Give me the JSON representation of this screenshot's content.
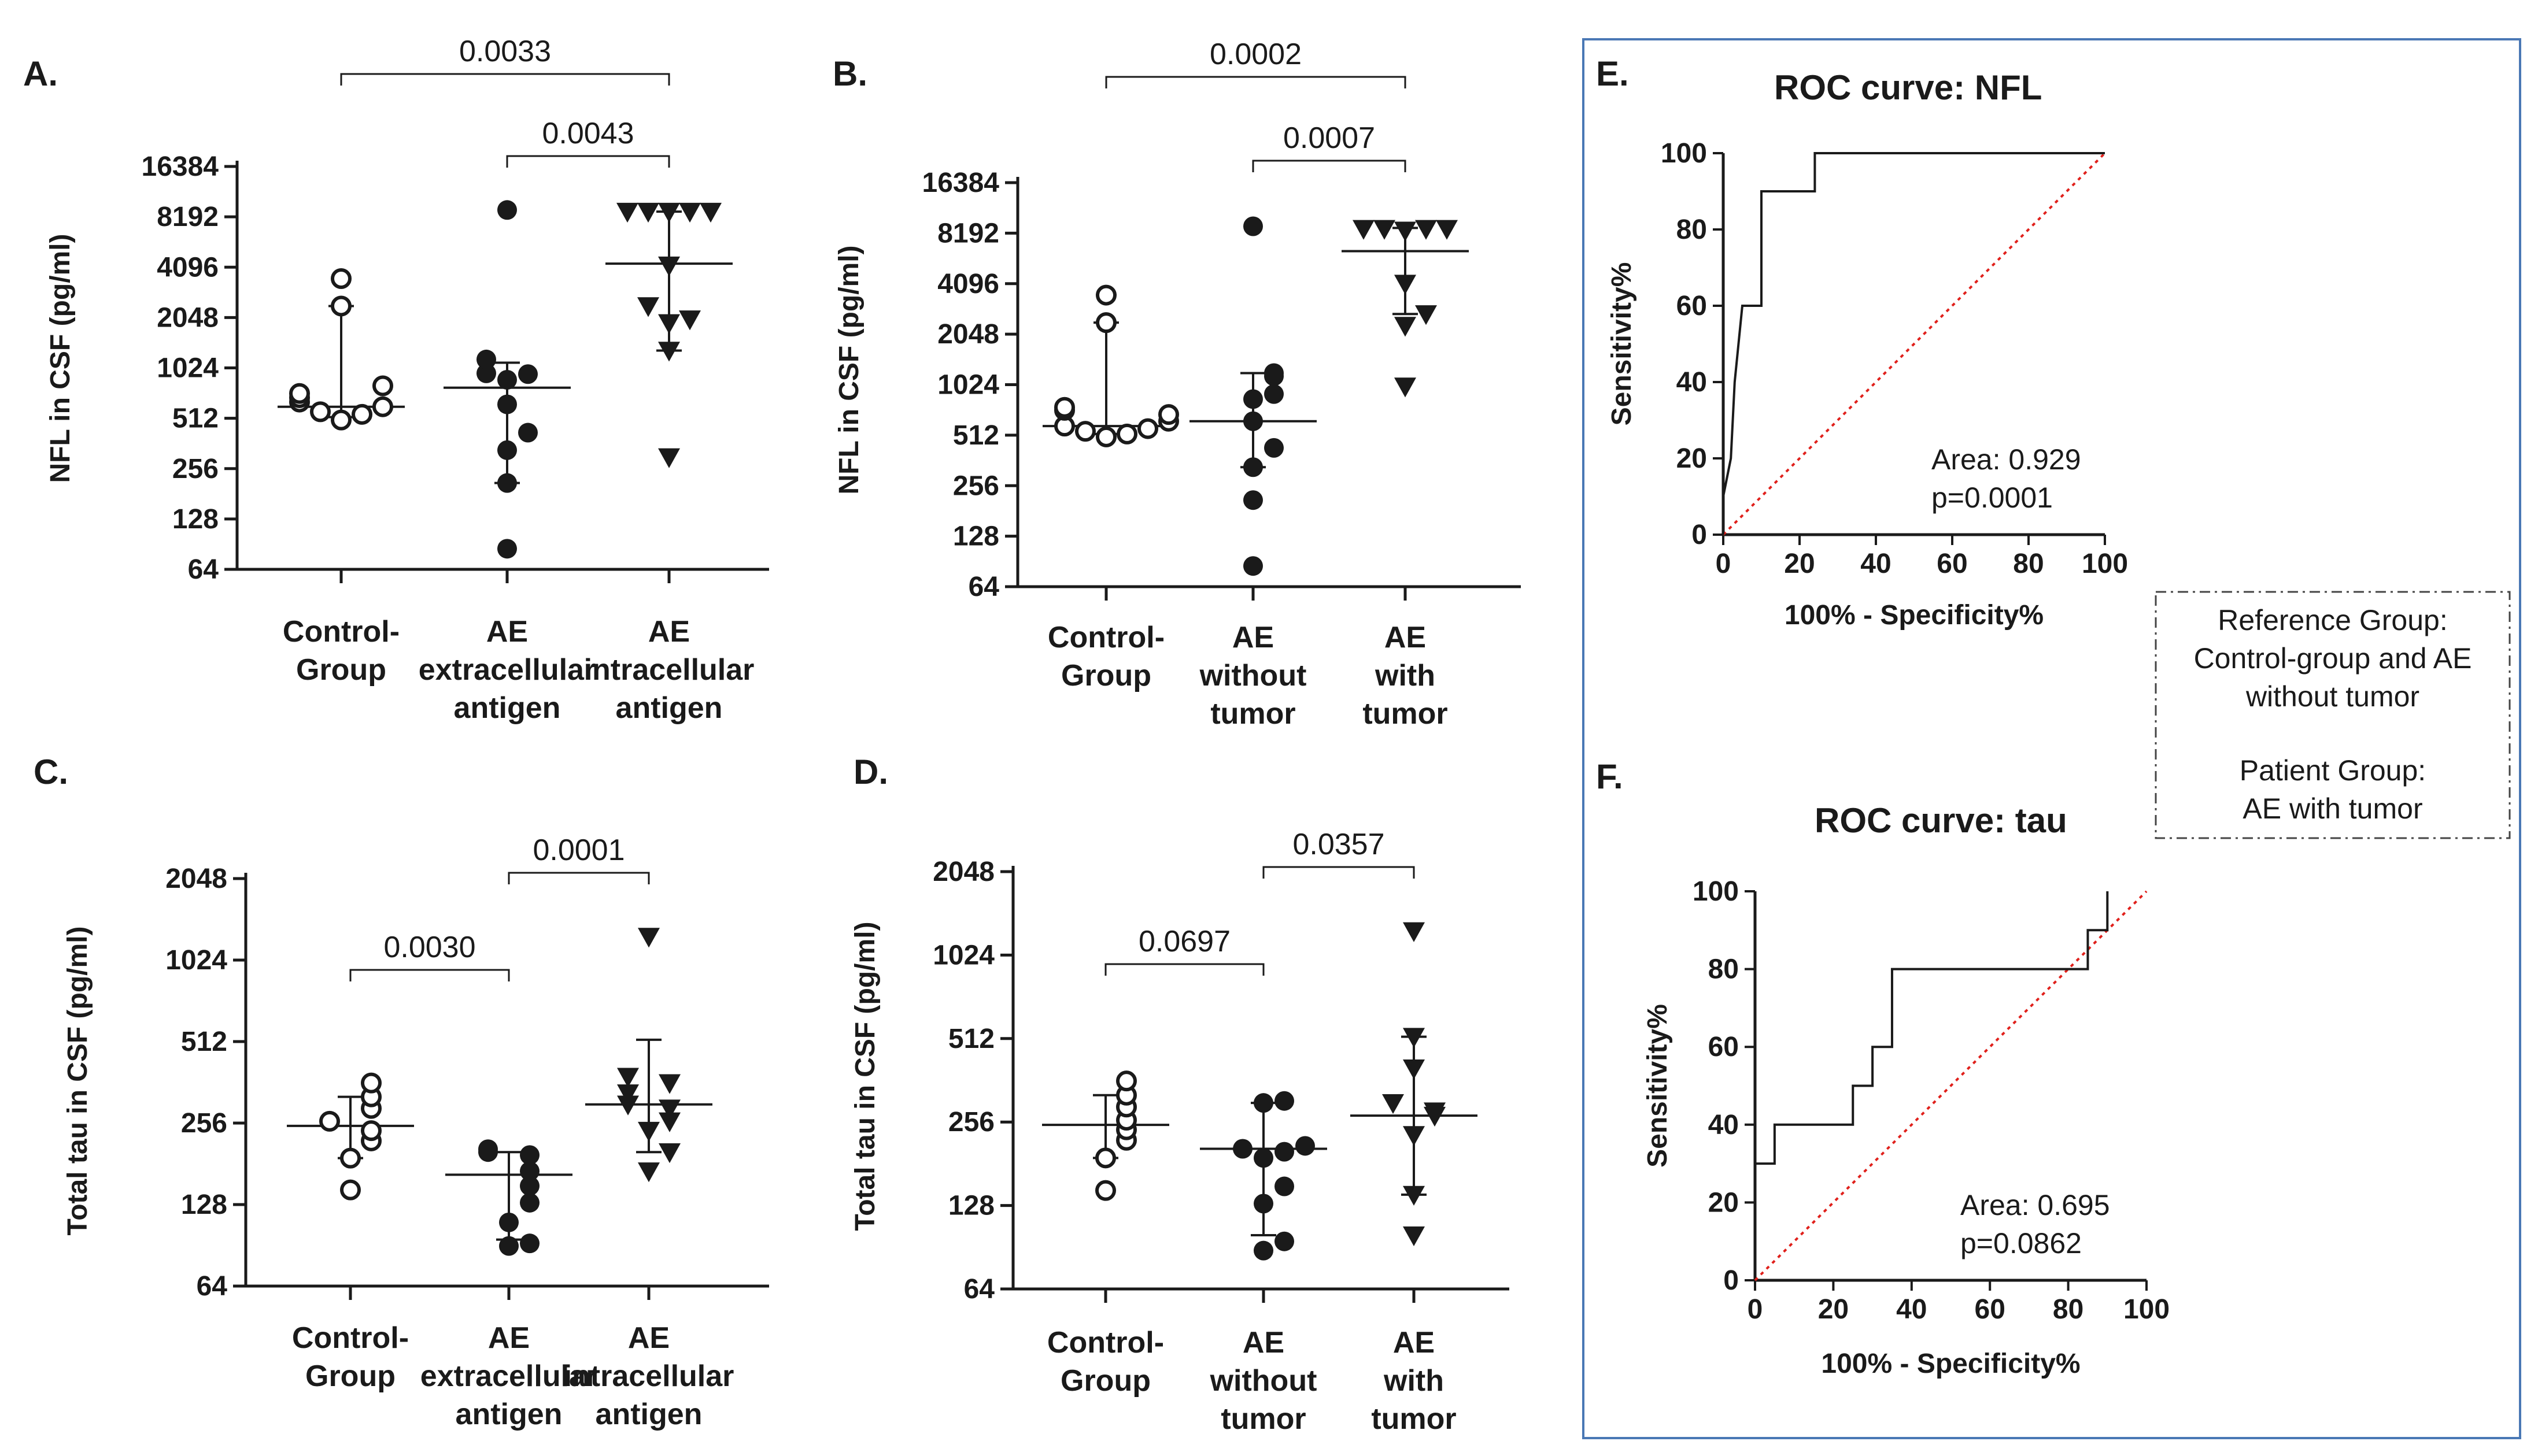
{
  "chart_data": [
    {
      "id": "A",
      "type": "scatter",
      "panel_label": "A.",
      "ylabel": "NFL in CSF (pg/ml)",
      "yscale": "log2",
      "ylim": [
        64,
        16384
      ],
      "yticks": [
        "64",
        "128",
        "256",
        "512",
        "1024",
        "2048",
        "4096",
        "8192",
        "16384"
      ],
      "categories": [
        [
          "Control-",
          "Group"
        ],
        [
          "AE",
          "extracellular",
          "antigen"
        ],
        [
          "AE",
          "intracellular",
          "antigen"
        ]
      ],
      "series": [
        {
          "name": "Control-Group",
          "marker": "open-circle",
          "values": [
            500,
            540,
            560,
            600,
            640,
            680,
            720,
            800,
            2400,
            3500
          ],
          "median": 600,
          "q1": 520,
          "q3": 2400
        },
        {
          "name": "AE extracellular antigen",
          "marker": "filled-circle",
          "values": [
            85,
            210,
            330,
            420,
            620,
            870,
            940,
            950,
            1150,
            9000
          ],
          "median": 780,
          "q1": 210,
          "q3": 1100
        },
        {
          "name": "AE intracellular antigen",
          "marker": "filled-triangle",
          "values": [
            300,
            1300,
            1900,
            2000,
            2400,
            4200,
            8800,
            8800,
            8800,
            8800,
            8800
          ],
          "median": 4300,
          "q1": 1300,
          "q3": 8800
        }
      ],
      "comparisons": [
        {
          "from": 0,
          "to": 2,
          "label": "0.0033"
        },
        {
          "from": 1,
          "to": 2,
          "label": "0.0043"
        }
      ]
    },
    {
      "id": "B",
      "type": "scatter",
      "panel_label": "B.",
      "ylabel": "NFL in CSF (pg/ml)",
      "yscale": "log2",
      "ylim": [
        64,
        16384
      ],
      "yticks": [
        "64",
        "128",
        "256",
        "512",
        "1024",
        "2048",
        "4096",
        "8192",
        "16384"
      ],
      "categories": [
        [
          "Control-",
          "Group"
        ],
        [
          "AE",
          "without",
          "tumor"
        ],
        [
          "AE",
          "with",
          "tumor"
        ]
      ],
      "series": [
        {
          "name": "Control-Group",
          "marker": "open-circle",
          "values": [
            500,
            520,
            540,
            560,
            580,
            620,
            680,
            720,
            750,
            2400,
            3500
          ],
          "median": 580,
          "q1": 520,
          "q3": 2400
        },
        {
          "name": "AE without tumor",
          "marker": "filled-circle",
          "values": [
            85,
            210,
            330,
            430,
            620,
            840,
            900,
            1150,
            1200,
            9000
          ],
          "median": 620,
          "q1": 330,
          "q3": 1200
        },
        {
          "name": "AE with tumor",
          "marker": "filled-triangle",
          "values": [
            1000,
            2300,
            2700,
            4100,
            8500,
            8700,
            8700,
            8700,
            8700
          ],
          "median": 6400,
          "q1": 2700,
          "q3": 8800
        }
      ],
      "comparisons": [
        {
          "from": 0,
          "to": 2,
          "label": "0.0002"
        },
        {
          "from": 1,
          "to": 2,
          "label": "0.0007"
        }
      ]
    },
    {
      "id": "C",
      "type": "scatter",
      "panel_label": "C.",
      "ylabel": "Total tau in CSF (pg/ml)",
      "yscale": "log2",
      "ylim": [
        64,
        2048
      ],
      "yticks": [
        "64",
        "128",
        "256",
        "512",
        "1024",
        "2048"
      ],
      "categories": [
        [
          "Control-",
          "Group"
        ],
        [
          "AE",
          "extracellular",
          "antigen"
        ],
        [
          "AE",
          "intracellular",
          "antigen"
        ]
      ],
      "series": [
        {
          "name": "Control-Group",
          "marker": "open-circle",
          "values": [
            145,
            190,
            220,
            240,
            260,
            290,
            320,
            360
          ],
          "median": 250,
          "q1": 190,
          "q3": 320
        },
        {
          "name": "AE extracellular antigen",
          "marker": "filled-circle",
          "values": [
            90,
            92,
            110,
            130,
            150,
            170,
            195,
            200,
            205
          ],
          "median": 165,
          "q1": 95,
          "q3": 200
        },
        {
          "name": "AE intracellular antigen",
          "marker": "filled-triangle",
          "values": [
            170,
            200,
            240,
            260,
            290,
            300,
            330,
            360,
            380,
            1250
          ],
          "median": 300,
          "q1": 200,
          "q3": 520
        }
      ],
      "comparisons": [
        {
          "from": 0,
          "to": 1,
          "label": "0.0030"
        },
        {
          "from": 1,
          "to": 2,
          "label": "0.0001"
        }
      ]
    },
    {
      "id": "D",
      "type": "scatter",
      "panel_label": "D.",
      "ylabel": "Total tau in CSF (pg/ml)",
      "yscale": "log2",
      "ylim": [
        64,
        2048
      ],
      "yticks": [
        "64",
        "128",
        "256",
        "512",
        "1024",
        "2048"
      ],
      "categories": [
        [
          "Control-",
          "Group"
        ],
        [
          "AE",
          "without",
          "tumor"
        ],
        [
          "AE",
          "with",
          "tumor"
        ]
      ],
      "series": [
        {
          "name": "Control-Group",
          "marker": "open-circle",
          "values": [
            145,
            190,
            220,
            240,
            260,
            290,
            320,
            360
          ],
          "median": 250,
          "q1": 190,
          "q3": 320
        },
        {
          "name": "AE without tumor",
          "marker": "filled-circle",
          "values": [
            88,
            95,
            130,
            150,
            190,
            200,
            205,
            210,
            300,
            305
          ],
          "median": 205,
          "q1": 100,
          "q3": 300
        },
        {
          "name": "AE with tumor",
          "marker": "filled-triangle",
          "values": [
            100,
            140,
            230,
            270,
            280,
            300,
            400,
            520,
            1250
          ],
          "median": 270,
          "q1": 140,
          "q3": 520
        }
      ],
      "comparisons": [
        {
          "from": 0,
          "to": 1,
          "label": "0.0697"
        },
        {
          "from": 1,
          "to": 2,
          "label": "0.0357"
        }
      ]
    },
    {
      "id": "E",
      "type": "line",
      "panel_label": "E.",
      "title": "ROC curve: NFL",
      "xlabel": "100% - Specificity%",
      "ylabel": "Sensitivity%",
      "xlim": [
        0,
        100
      ],
      "ylim": [
        0,
        100
      ],
      "ticks": [
        "0",
        "20",
        "40",
        "60",
        "80",
        "100"
      ],
      "curve": [
        [
          0,
          0
        ],
        [
          0,
          10
        ],
        [
          2,
          20
        ],
        [
          3,
          40
        ],
        [
          5,
          60
        ],
        [
          10,
          60
        ],
        [
          10,
          90
        ],
        [
          24,
          90
        ],
        [
          24,
          100
        ],
        [
          100,
          100
        ]
      ],
      "reference_line": [
        [
          0,
          0
        ],
        [
          100,
          100
        ]
      ],
      "area_text": "Area: 0.929",
      "p_text": "p=0.0001"
    },
    {
      "id": "F",
      "type": "line",
      "panel_label": "F.",
      "title": "ROC curve: tau",
      "xlabel": "100% - Specificity%",
      "ylabel": "Sensitivity%",
      "xlim": [
        0,
        100
      ],
      "ylim": [
        0,
        100
      ],
      "ticks": [
        "0",
        "20",
        "40",
        "60",
        "80",
        "100"
      ],
      "curve": [
        [
          0,
          30
        ],
        [
          5,
          30
        ],
        [
          5,
          40
        ],
        [
          25,
          40
        ],
        [
          25,
          50
        ],
        [
          30,
          50
        ],
        [
          30,
          60
        ],
        [
          35,
          60
        ],
        [
          35,
          80
        ],
        [
          85,
          80
        ],
        [
          85,
          90
        ],
        [
          90,
          90
        ],
        [
          90,
          100
        ]
      ],
      "reference_line": [
        [
          0,
          0
        ],
        [
          100,
          100
        ]
      ],
      "area_text": "Area: 0.695",
      "p_text": "p=0.0862"
    }
  ],
  "reference_note": {
    "ref_title": "Reference Group:",
    "ref_line1": "Control-group  and AE",
    "ref_line2": "without tumor",
    "pat_title": "Patient Group:",
    "pat_line1": "AE with tumor"
  },
  "colors": {
    "ink": "#1a1a1a",
    "diagonal": "#e0201b",
    "frame": "#4a78b5"
  }
}
